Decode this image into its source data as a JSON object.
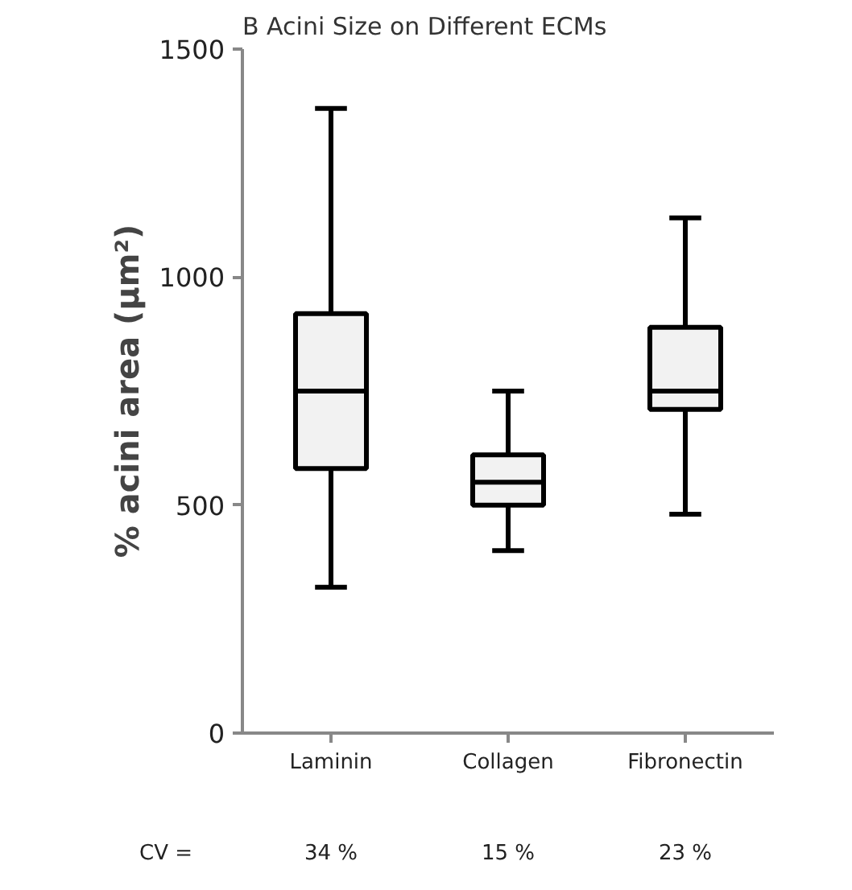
{
  "chart_data": {
    "type": "box",
    "title": "B  Acini Size on Different ECMs",
    "ylabel": "% acini area (µm²)",
    "categories": [
      "Laminin",
      "Collagen",
      "Fibronectin"
    ],
    "boxes": [
      {
        "low": 320,
        "q1": 580,
        "median": 750,
        "q3": 920,
        "high": 1370
      },
      {
        "low": 400,
        "q1": 500,
        "median": 550,
        "q3": 610,
        "high": 750
      },
      {
        "low": 480,
        "q1": 710,
        "median": 750,
        "q3": 890,
        "high": 1130
      }
    ],
    "color": "#f2f2f2",
    "ylim": [
      0,
      1500
    ],
    "yticks": [
      0,
      500,
      1000,
      1500
    ],
    "grid": false,
    "annotations": [
      "CV =",
      "34 %",
      "15 %",
      "23 %"
    ]
  }
}
